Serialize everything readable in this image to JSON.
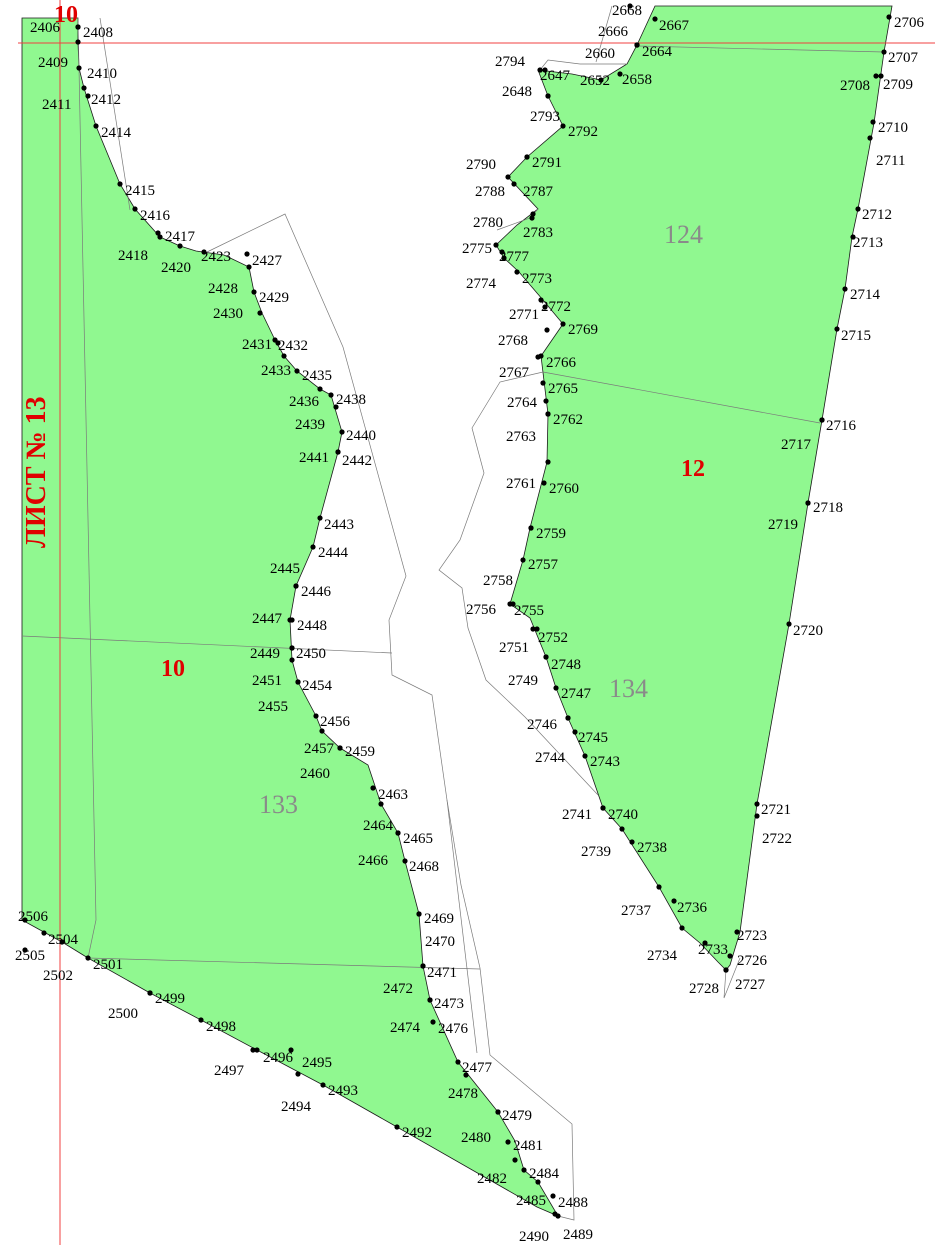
{
  "sheet_label": "ЛИСТ № 13",
  "area_labels": {
    "grey": [
      "124",
      "133",
      "134"
    ],
    "red": [
      "10",
      "12",
      "10"
    ]
  },
  "point_labels": [
    "2406",
    "2408",
    "2409",
    "2410",
    "2411",
    "2412",
    "2414",
    "2415",
    "2416",
    "2417",
    "2418",
    "2420",
    "2423",
    "2427",
    "2428",
    "2429",
    "2430",
    "2431",
    "2432",
    "2433",
    "2435",
    "2436",
    "2438",
    "2439",
    "2440",
    "2441",
    "2442",
    "2443",
    "2444",
    "2445",
    "2446",
    "2447",
    "2448",
    "2449",
    "2450",
    "2451",
    "2454",
    "2455",
    "2456",
    "2457",
    "2459",
    "2460",
    "2463",
    "2464",
    "2465",
    "2466",
    "2468",
    "2469",
    "2470",
    "2471",
    "2472",
    "2473",
    "2474",
    "2476",
    "2477",
    "2478",
    "2479",
    "2480",
    "2481",
    "2482",
    "2484",
    "2485",
    "2488",
    "2489",
    "2490",
    "2492",
    "2493",
    "2494",
    "2495",
    "2496",
    "2497",
    "2498",
    "2499",
    "2500",
    "2501",
    "2502",
    "2504",
    "2505",
    "2506",
    "2666",
    "2667",
    "2660",
    "2664",
    "2794",
    "2647",
    "2652",
    "2658",
    "2648",
    "2793",
    "2792",
    "2790",
    "2791",
    "2788",
    "2787",
    "2780",
    "2783",
    "2775",
    "2777",
    "2774",
    "2773",
    "2771",
    "2772",
    "2768",
    "2769",
    "2767",
    "2766",
    "2765",
    "2764",
    "2762",
    "2763",
    "2761",
    "2760",
    "2759",
    "2758",
    "2757",
    "2756",
    "2755",
    "2751",
    "2752",
    "2748",
    "2749",
    "2747",
    "2746",
    "2745",
    "2744",
    "2743",
    "2741",
    "2740",
    "2739",
    "2738",
    "2737",
    "2736",
    "2734",
    "2733",
    "2726",
    "2728",
    "2727",
    "2723",
    "2722",
    "2721",
    "2720",
    "2719",
    "2718",
    "2717",
    "2716",
    "2715",
    "2714",
    "2713",
    "2712",
    "2711",
    "2710",
    "2708",
    "2709",
    "2707",
    "2706",
    "2668"
  ]
}
